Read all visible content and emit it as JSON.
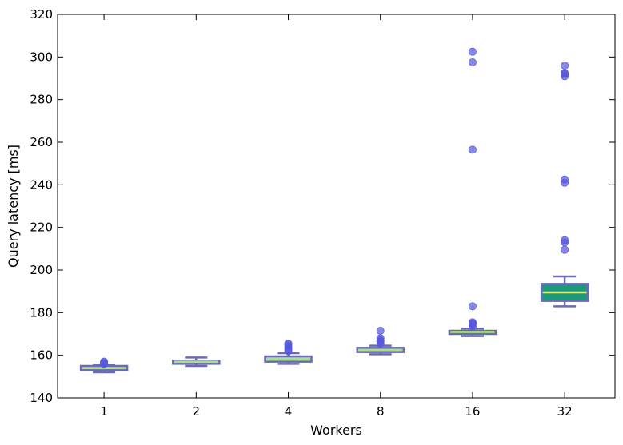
{
  "chart_data": {
    "type": "box",
    "xlabel": "Workers",
    "ylabel": "Query latency [ms]",
    "ylim": [
      140,
      320
    ],
    "yticks": [
      140,
      160,
      180,
      200,
      220,
      240,
      260,
      280,
      300,
      320
    ],
    "grid": false,
    "categories": [
      "1",
      "2",
      "4",
      "8",
      "16",
      "32"
    ],
    "boxes": [
      {
        "category": "1",
        "whisker_low": 152,
        "q1": 153,
        "median": 154,
        "q3": 155,
        "whisker_high": 155.5,
        "outliers": [
          156,
          156.5,
          157
        ]
      },
      {
        "category": "2",
        "whisker_low": 155,
        "q1": 156,
        "median": 157,
        "q3": 157.5,
        "whisker_high": 159,
        "outliers": []
      },
      {
        "category": "4",
        "whisker_low": 156,
        "q1": 157,
        "median": 158,
        "q3": 159.5,
        "whisker_high": 161,
        "outliers": [
          162,
          163,
          164,
          165,
          165.5
        ]
      },
      {
        "category": "8",
        "whisker_low": 160.5,
        "q1": 161.5,
        "median": 162.5,
        "q3": 163.5,
        "whisker_high": 164.5,
        "outliers": [
          165.5,
          166.5,
          167,
          168,
          171.5
        ]
      },
      {
        "category": "16",
        "whisker_low": 169,
        "q1": 170,
        "median": 171,
        "q3": 171.5,
        "whisker_high": 172.5,
        "outliers": [
          173.5,
          174.5,
          175,
          175.5,
          183,
          256.5,
          297.5,
          302.5
        ]
      },
      {
        "category": "32",
        "whisker_low": 183,
        "q1": 185.5,
        "median": 189.5,
        "q3": 193.5,
        "whisker_high": 197,
        "outliers": [
          209.5,
          213,
          214,
          241,
          242.5,
          291,
          292,
          292.5,
          296
        ]
      }
    ],
    "colors": {
      "box_fill_light": "#a6dcb8",
      "box_fill_dark": "#1a9a78",
      "box_stroke": "#6b6bb5",
      "median": "#a8e07a",
      "median_dark": "#d8ee7a",
      "outlier": "#5555dd"
    }
  }
}
